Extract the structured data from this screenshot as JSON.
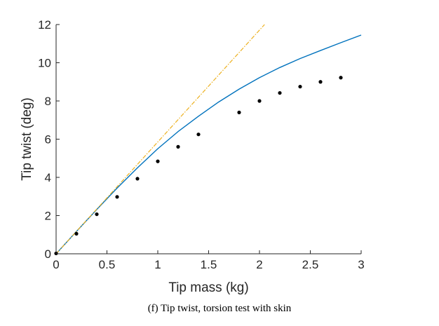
{
  "chart_data": {
    "type": "line",
    "title": "",
    "xlabel": "Tip mass (kg)",
    "ylabel": "Tip twist (deg)",
    "xlim": [
      0,
      3
    ],
    "ylim": [
      0,
      12
    ],
    "xticks": [
      0,
      0.5,
      1,
      1.5,
      2,
      2.5,
      3
    ],
    "xtick_labels": [
      "0",
      "0.5",
      "1",
      "1.5",
      "2",
      "2.5",
      "3"
    ],
    "yticks": [
      0,
      2,
      4,
      6,
      8,
      10,
      12
    ],
    "ytick_labels": [
      "0",
      "2",
      "4",
      "6",
      "8",
      "10",
      "12"
    ],
    "grid": false,
    "legend": "none",
    "series": [
      {
        "style": "solid-line",
        "color": "#0072BD",
        "x": [
          0,
          0.2,
          0.4,
          0.6,
          0.8,
          1.0,
          1.2,
          1.4,
          1.6,
          1.8,
          2.0,
          2.2,
          2.4,
          2.6,
          2.8,
          3.0
        ],
        "y": [
          0,
          1.17,
          2.32,
          3.44,
          4.5,
          5.5,
          6.4,
          7.2,
          7.95,
          8.62,
          9.22,
          9.75,
          10.22,
          10.64,
          11.05,
          11.45
        ]
      },
      {
        "style": "dash-dot-line",
        "color": "#EDB120",
        "x": [
          0,
          2.05
        ],
        "y": [
          0,
          12.0
        ]
      },
      {
        "style": "markers",
        "color": "#000000",
        "x": [
          0,
          0.2,
          0.4,
          0.6,
          0.8,
          1.0,
          1.2,
          1.4,
          1.8,
          2.0,
          2.2,
          2.4,
          2.6,
          2.8
        ],
        "y": [
          0.02,
          1.05,
          2.07,
          2.98,
          3.93,
          4.84,
          5.6,
          6.25,
          7.4,
          8.0,
          8.42,
          8.75,
          9.0,
          9.22
        ]
      }
    ]
  },
  "caption": "(f)  Tip twist, torsion test with skin"
}
